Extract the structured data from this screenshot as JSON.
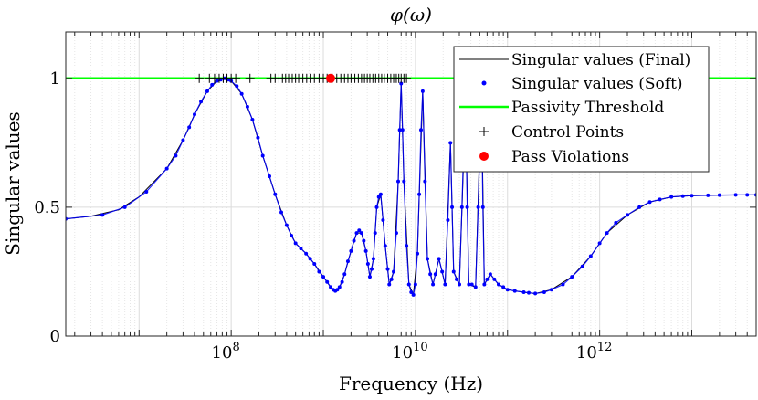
{
  "chart_data": {
    "type": "line",
    "title": "φ(ω)",
    "xlabel": "Frequency (Hz)",
    "ylabel": "Singular values",
    "xscale": "log",
    "xlim": [
      1600000.0,
      50000000000000.0
    ],
    "ylim": [
      0,
      1.18
    ],
    "x_ticks": [
      {
        "value": 100000000.0,
        "base": "10",
        "exp": "8"
      },
      {
        "value": 10000000000.0,
        "base": "10",
        "exp": "10"
      },
      {
        "value": 1000000000000.0,
        "base": "10",
        "exp": "12"
      }
    ],
    "y_ticks": [
      {
        "value": 0,
        "label": "0"
      },
      {
        "value": 0.5,
        "label": "0.5"
      },
      {
        "value": 1,
        "label": "1"
      }
    ],
    "grid": true,
    "legend_position": "top-right",
    "legend": [
      {
        "label": "Singular values (Final)",
        "marker": "line",
        "color": "#000000"
      },
      {
        "label": "Singular values (Soft)",
        "marker": "dot",
        "color": "#0000ff"
      },
      {
        "label": "Passivity Threshold",
        "marker": "thick-line",
        "color": "#00ff00"
      },
      {
        "label": "Control Points",
        "marker": "plus",
        "color": "#000000"
      },
      {
        "label": "Pass Violations",
        "marker": "big-dot",
        "color": "#ff0000"
      }
    ],
    "passivity_threshold": 1,
    "series": [
      {
        "name": "Singular values (Final)",
        "color": "#000000",
        "points": [
          [
            1600000.0,
            0.455
          ],
          [
            3000000.0,
            0.465
          ],
          [
            6000000.0,
            0.49
          ],
          [
            10000000.0,
            0.54
          ],
          [
            20000000.0,
            0.65
          ],
          [
            30000000.0,
            0.76
          ],
          [
            40000000.0,
            0.86
          ],
          [
            55000000.0,
            0.95
          ],
          [
            70000000.0,
            0.99
          ],
          [
            85000000.0,
            1.0
          ],
          [
            100000000.0,
            0.99
          ],
          [
            130000000.0,
            0.94
          ],
          [
            170000000.0,
            0.84
          ],
          [
            220000000.0,
            0.7
          ],
          [
            300000000.0,
            0.55
          ],
          [
            400000000.0,
            0.43
          ],
          [
            500000000.0,
            0.36
          ],
          [
            650000000.0,
            0.32
          ],
          [
            800000000.0,
            0.28
          ],
          [
            1000000000.0,
            0.23
          ],
          [
            1200000000.0,
            0.19
          ],
          [
            1350000000.0,
            0.175
          ],
          [
            1500000000.0,
            0.19
          ],
          [
            1700000000.0,
            0.24
          ],
          [
            2000000000.0,
            0.33
          ],
          [
            2300000000.0,
            0.4
          ],
          [
            2600000000.0,
            0.4
          ],
          [
            2900000000.0,
            0.33
          ],
          [
            3200000000.0,
            0.23
          ],
          [
            3500000000.0,
            0.3
          ],
          [
            3800000000.0,
            0.5
          ],
          [
            4200000000.0,
            0.55
          ],
          [
            4700000000.0,
            0.35
          ],
          [
            5200000000.0,
            0.2
          ],
          [
            5800000000.0,
            0.25
          ],
          [
            6500000000.0,
            0.6
          ],
          [
            7000000000.0,
            0.98
          ],
          [
            7500000000.0,
            0.6
          ],
          [
            8500000000.0,
            0.2
          ],
          [
            9500000000.0,
            0.16
          ],
          [
            10500000000.0,
            0.32
          ],
          [
            12000000000.0,
            0.95
          ],
          [
            13500000000.0,
            0.3
          ],
          [
            15500000000.0,
            0.2
          ],
          [
            18000000000.0,
            0.3
          ],
          [
            21000000000.0,
            0.2
          ],
          [
            24000000000.0,
            0.75
          ],
          [
            26000000000.0,
            0.25
          ],
          [
            30000000000.0,
            0.2
          ],
          [
            35000000000.0,
            0.9
          ],
          [
            38000000000.0,
            0.2
          ],
          [
            45000000000.0,
            0.19
          ],
          [
            52000000000.0,
            0.95
          ],
          [
            56000000000.0,
            0.2
          ],
          [
            65000000000.0,
            0.24
          ],
          [
            80000000000.0,
            0.2
          ],
          [
            100000000000.0,
            0.18
          ],
          [
            150000000000.0,
            0.17
          ],
          [
            200000000000.0,
            0.165
          ],
          [
            300000000000.0,
            0.18
          ],
          [
            500000000000.0,
            0.23
          ],
          [
            800000000000.0,
            0.31
          ],
          [
            1200000000000.0,
            0.4
          ],
          [
            2000000000000.0,
            0.47
          ],
          [
            3500000000000.0,
            0.52
          ],
          [
            6000000000000.0,
            0.54
          ],
          [
            10000000000000.0,
            0.545
          ],
          [
            20000000000000.0,
            0.547
          ],
          [
            50000000000000.0,
            0.548
          ]
        ]
      },
      {
        "name": "Singular values (Soft)",
        "color": "#0000ff",
        "points": [
          [
            1600000.0,
            0.455
          ],
          [
            4000000.0,
            0.47
          ],
          [
            7000000.0,
            0.5
          ],
          [
            12000000.0,
            0.56
          ],
          [
            20000000.0,
            0.65
          ],
          [
            25000000.0,
            0.7
          ],
          [
            30000000.0,
            0.76
          ],
          [
            35000000.0,
            0.81
          ],
          [
            40000000.0,
            0.86
          ],
          [
            47000000.0,
            0.91
          ],
          [
            55000000.0,
            0.95
          ],
          [
            62000000.0,
            0.975
          ],
          [
            70000000.0,
            0.99
          ],
          [
            77000000.0,
            0.995
          ],
          [
            85000000.0,
            1.0
          ],
          [
            93000000.0,
            0.995
          ],
          [
            100000000.0,
            0.99
          ],
          [
            115000000.0,
            0.97
          ],
          [
            130000000.0,
            0.94
          ],
          [
            150000000.0,
            0.89
          ],
          [
            170000000.0,
            0.84
          ],
          [
            195000000.0,
            0.77
          ],
          [
            220000000.0,
            0.7
          ],
          [
            260000000.0,
            0.62
          ],
          [
            300000000.0,
            0.55
          ],
          [
            350000000.0,
            0.48
          ],
          [
            400000000.0,
            0.43
          ],
          [
            450000000.0,
            0.39
          ],
          [
            500000000.0,
            0.36
          ],
          [
            570000000.0,
            0.34
          ],
          [
            650000000.0,
            0.32
          ],
          [
            720000000.0,
            0.3
          ],
          [
            800000000.0,
            0.28
          ],
          [
            900000000.0,
            0.25
          ],
          [
            1000000000.0,
            0.23
          ],
          [
            1100000000.0,
            0.21
          ],
          [
            1200000000.0,
            0.19
          ],
          [
            1280000000.0,
            0.18
          ],
          [
            1350000000.0,
            0.175
          ],
          [
            1420000000.0,
            0.18
          ],
          [
            1500000000.0,
            0.19
          ],
          [
            1600000000.0,
            0.21
          ],
          [
            1700000000.0,
            0.24
          ],
          [
            1850000000.0,
            0.29
          ],
          [
            2000000000.0,
            0.33
          ],
          [
            2150000000.0,
            0.37
          ],
          [
            2300000000.0,
            0.4
          ],
          [
            2450000000.0,
            0.41
          ],
          [
            2600000000.0,
            0.4
          ],
          [
            2750000000.0,
            0.37
          ],
          [
            2900000000.0,
            0.33
          ],
          [
            3050000000.0,
            0.28
          ],
          [
            3200000000.0,
            0.23
          ],
          [
            3350000000.0,
            0.26
          ],
          [
            3500000000.0,
            0.3
          ],
          [
            3650000000.0,
            0.4
          ],
          [
            3800000000.0,
            0.5
          ],
          [
            4000000000.0,
            0.54
          ],
          [
            4200000000.0,
            0.55
          ],
          [
            4450000000.0,
            0.45
          ],
          [
            4700000000.0,
            0.35
          ],
          [
            5000000000.0,
            0.26
          ],
          [
            5200000000.0,
            0.2
          ],
          [
            5500000000.0,
            0.22
          ],
          [
            5800000000.0,
            0.25
          ],
          [
            6200000000.0,
            0.4
          ],
          [
            6500000000.0,
            0.6
          ],
          [
            6750000000.0,
            0.8
          ],
          [
            7000000000.0,
            0.98
          ],
          [
            7250000000.0,
            0.8
          ],
          [
            7500000000.0,
            0.6
          ],
          [
            8000000000.0,
            0.35
          ],
          [
            8500000000.0,
            0.2
          ],
          [
            9000000000.0,
            0.17
          ],
          [
            9500000000.0,
            0.16
          ],
          [
            10000000000.0,
            0.2
          ],
          [
            10500000000.0,
            0.32
          ],
          [
            11000000000.0,
            0.55
          ],
          [
            11500000000.0,
            0.8
          ],
          [
            12000000000.0,
            0.95
          ],
          [
            12700000000.0,
            0.6
          ],
          [
            13500000000.0,
            0.3
          ],
          [
            14500000000.0,
            0.24
          ],
          [
            15500000000.0,
            0.2
          ],
          [
            16500000000.0,
            0.24
          ],
          [
            18000000000.0,
            0.3
          ],
          [
            19500000000.0,
            0.25
          ],
          [
            21000000000.0,
            0.2
          ],
          [
            22500000000.0,
            0.45
          ],
          [
            24000000000.0,
            0.75
          ],
          [
            25000000000.0,
            0.5
          ],
          [
            26000000000.0,
            0.25
          ],
          [
            28000000000.0,
            0.22
          ],
          [
            30000000000.0,
            0.2
          ],
          [
            32000000000.0,
            0.5
          ],
          [
            33500000000.0,
            0.75
          ],
          [
            35000000000.0,
            0.9
          ],
          [
            36500000000.0,
            0.5
          ],
          [
            38000000000.0,
            0.2
          ],
          [
            41000000000.0,
            0.2
          ],
          [
            45000000000.0,
            0.19
          ],
          [
            48000000000.0,
            0.5
          ],
          [
            52000000000.0,
            0.95
          ],
          [
            54000000000.0,
            0.5
          ],
          [
            56000000000.0,
            0.2
          ],
          [
            60000000000.0,
            0.22
          ],
          [
            65000000000.0,
            0.24
          ],
          [
            72000000000.0,
            0.22
          ],
          [
            80000000000.0,
            0.2
          ],
          [
            90000000000.0,
            0.19
          ],
          [
            100000000000.0,
            0.18
          ],
          [
            120000000000.0,
            0.175
          ],
          [
            150000000000.0,
            0.17
          ],
          [
            170000000000.0,
            0.168
          ],
          [
            200000000000.0,
            0.165
          ],
          [
            250000000000.0,
            0.17
          ],
          [
            300000000000.0,
            0.18
          ],
          [
            400000000000.0,
            0.2
          ],
          [
            500000000000.0,
            0.23
          ],
          [
            650000000000.0,
            0.27
          ],
          [
            800000000000.0,
            0.31
          ],
          [
            1000000000000.0,
            0.36
          ],
          [
            1200000000000.0,
            0.4
          ],
          [
            1500000000000.0,
            0.44
          ],
          [
            2000000000000.0,
            0.47
          ],
          [
            2700000000000.0,
            0.5
          ],
          [
            3500000000000.0,
            0.52
          ],
          [
            4500000000000.0,
            0.53
          ],
          [
            6000000000000.0,
            0.54
          ],
          [
            8000000000000.0,
            0.543
          ],
          [
            10000000000000.0,
            0.545
          ],
          [
            15000000000000.0,
            0.546
          ],
          [
            20000000000000.0,
            0.547
          ],
          [
            30000000000000.0,
            0.548
          ],
          [
            40000000000000.0,
            0.548
          ],
          [
            50000000000000.0,
            0.548
          ]
        ]
      },
      {
        "name": "Control Points",
        "color": "#000000",
        "y": 1,
        "x": [
          45000000.0,
          58000000.0,
          66000000.0,
          74000000.0,
          82000000.0,
          90000000.0,
          100000000.0,
          112000000.0,
          160000000.0,
          270000000.0,
          300000000.0,
          330000000.0,
          360000000.0,
          390000000.0,
          420000000.0,
          460000000.0,
          500000000.0,
          540000000.0,
          600000000.0,
          660000000.0,
          720000000.0,
          800000000.0,
          900000000.0,
          1000000000.0,
          1100000000.0,
          1250000000.0,
          1400000000.0,
          1550000000.0,
          1700000000.0,
          1850000000.0,
          2000000000.0,
          2200000000.0,
          2400000000.0,
          2600000000.0,
          2800000000.0,
          3000000000.0,
          3200000000.0,
          3450000000.0,
          3700000000.0,
          4000000000.0,
          4300000000.0,
          4600000000.0,
          5000000000.0,
          5400000000.0,
          5800000000.0,
          6200000000.0,
          6600000000.0,
          7000000000.0,
          7500000000.0,
          8000000000.0
        ]
      },
      {
        "name": "Pass Violations",
        "color": "#ff0000",
        "points": [
          [
            1200000000.0,
            1.0
          ]
        ]
      }
    ]
  }
}
